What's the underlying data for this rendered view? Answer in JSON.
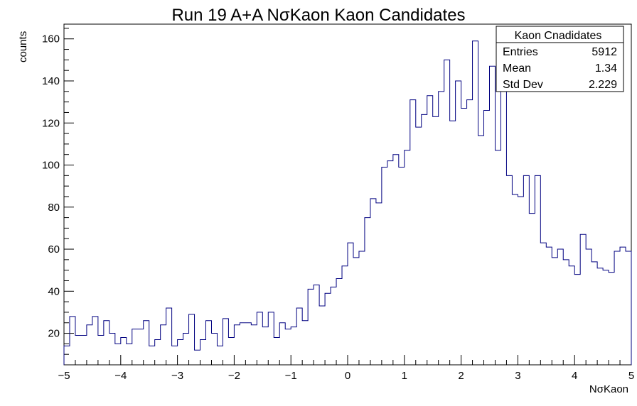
{
  "chart_data": {
    "type": "histogram",
    "title": "Run 19 A+A NσKaon Kaon Candidates",
    "xlabel": "NσKaon",
    "ylabel": "counts",
    "xlim": [
      -5,
      5
    ],
    "ylim": [
      5,
      167
    ],
    "x_ticks": [
      -5,
      -4,
      -3,
      -2,
      -1,
      0,
      1,
      2,
      3,
      4,
      5
    ],
    "x_tick_labels": [
      "−5",
      "−4",
      "−3",
      "−2",
      "−1",
      "0",
      "1",
      "2",
      "3",
      "4",
      "5"
    ],
    "y_ticks": [
      20,
      40,
      60,
      80,
      100,
      120,
      140,
      160
    ],
    "y_tick_labels": [
      "20",
      "40",
      "60",
      "80",
      "100",
      "120",
      "140",
      "160"
    ],
    "grid": false,
    "line_color": "#000080",
    "bin_count": 100,
    "series": [
      {
        "values": [
          14,
          28,
          19,
          19,
          24,
          28,
          19,
          26,
          20,
          15,
          18,
          15,
          22,
          22,
          26,
          14,
          17,
          24,
          32,
          14,
          17,
          20,
          29,
          12,
          17,
          26,
          20,
          14,
          27,
          18,
          24,
          25,
          25,
          24,
          30,
          23,
          30,
          18,
          25,
          22,
          23,
          32,
          26,
          41,
          43,
          33,
          39,
          42,
          46,
          52,
          63,
          56,
          59,
          75,
          84,
          82,
          99,
          102,
          105,
          99,
          107,
          131,
          118,
          124,
          133,
          123,
          135,
          150,
          121,
          140,
          127,
          131,
          159,
          114,
          126,
          147,
          107,
          139,
          95,
          86,
          85,
          95,
          77,
          95,
          63,
          61,
          56,
          60,
          55,
          52,
          48,
          67,
          60,
          54,
          51,
          50,
          49,
          59,
          61,
          59
        ]
      }
    ],
    "stats_box": {
      "title": "Kaon Cnadidates",
      "rows": [
        {
          "label": "Entries",
          "value": "5912"
        },
        {
          "label": "Mean",
          "value": "1.34"
        },
        {
          "label": "Std Dev",
          "value": "2.229"
        }
      ]
    }
  }
}
